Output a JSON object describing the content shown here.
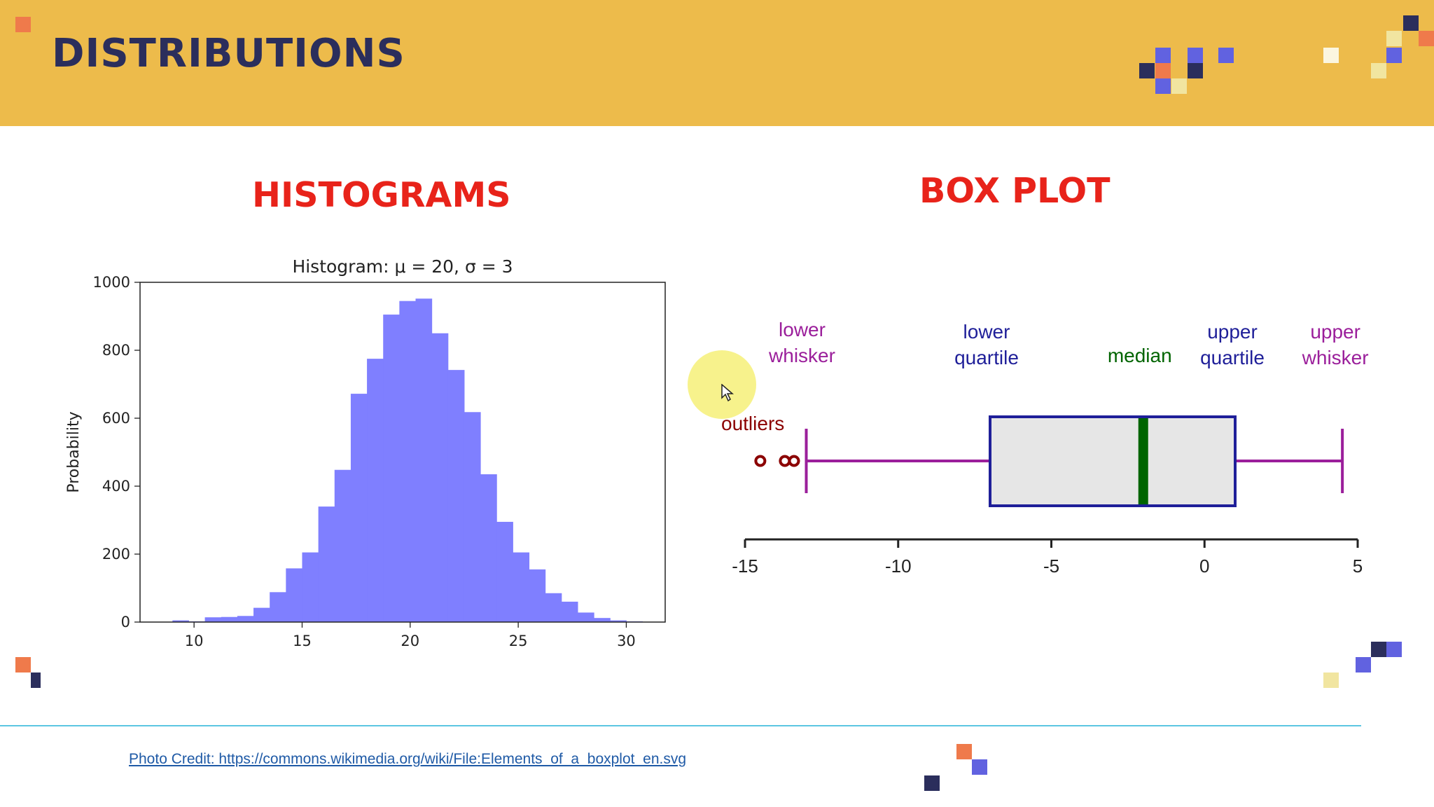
{
  "slide": {
    "title": "DISTRIBUTIONS",
    "histogram_heading": "HISTOGRAMS",
    "boxplot_heading": "BOX PLOT",
    "photo_credit": "Photo Credit: https://commons.wikimedia.org/wiki/File:Elements_of_a_boxplot_en.svg"
  },
  "colors": {
    "header": "#edbb4b",
    "title": "#2b2e5c",
    "heading": "#e8231a",
    "bars": "#7f7fff",
    "whisker": "#9b1f9b",
    "quartile": "#1f1f99",
    "median": "#006400",
    "outlier": "#8b0000",
    "box_fill": "#e6e6e6"
  },
  "icons": {
    "cursor": "mouse-pointer-icon"
  },
  "chart_data": [
    {
      "type": "bar",
      "title": "Histogram: μ = 20, σ = 3",
      "xlabel": "",
      "ylabel": "Probability",
      "xlim": [
        7.5,
        31.8
      ],
      "ylim": [
        0,
        1000
      ],
      "xticks": [
        10,
        15,
        20,
        25,
        30
      ],
      "yticks": [
        0,
        200,
        400,
        600,
        800,
        1000
      ],
      "bin_width": 0.75,
      "bins_start": [
        9.0,
        9.75,
        10.5,
        11.25,
        12.0,
        12.75,
        13.5,
        14.25,
        15.0,
        15.75,
        16.5,
        17.25,
        18.0,
        18.75,
        19.5,
        20.25,
        21.0,
        21.75,
        22.5,
        23.25,
        24.0,
        24.75,
        25.5,
        26.25,
        27.0,
        27.75,
        28.5,
        29.25,
        30.0
      ],
      "values": [
        5,
        2,
        14,
        15,
        18,
        42,
        88,
        158,
        205,
        340,
        448,
        672,
        775,
        905,
        945,
        952,
        850,
        742,
        618,
        435,
        295,
        205,
        155,
        85,
        60,
        28,
        12,
        5,
        2
      ]
    },
    {
      "type": "box",
      "xlim": [
        -15,
        5
      ],
      "xticks": [
        -15,
        -10,
        -5,
        0,
        5
      ],
      "xtick_labels": [
        "-15",
        "-10",
        "-5",
        "0",
        "5"
      ],
      "lower_whisker": -13.0,
      "lower_quartile": -7.0,
      "median": -2.0,
      "upper_quartile": 1.0,
      "upper_whisker": 4.5,
      "outliers": [
        -14.5,
        -13.7,
        -13.4
      ],
      "labels": {
        "lower_whisker": [
          "lower",
          "whisker"
        ],
        "lower_quartile": [
          "lower",
          "quartile"
        ],
        "median": [
          "median"
        ],
        "upper_quartile": [
          "upper",
          "quartile"
        ],
        "upper_whisker": [
          "upper",
          "whisker"
        ],
        "outliers": [
          "outliers"
        ]
      }
    }
  ]
}
